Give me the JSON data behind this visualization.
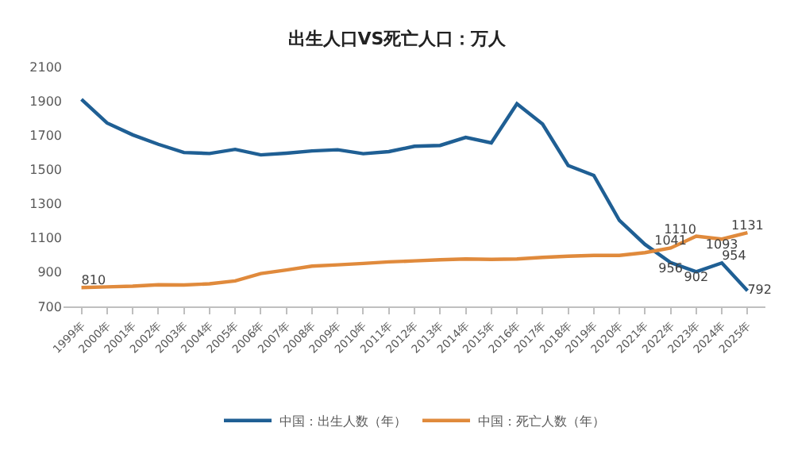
{
  "chart_data": {
    "type": "line",
    "title": "出生人口VS死亡人口：万人",
    "categories": [
      "1999年",
      "2000年",
      "2001年",
      "2002年",
      "2003年",
      "2004年",
      "2005年",
      "2006年",
      "2007年",
      "2008年",
      "2009年",
      "2010年",
      "2011年",
      "2012年",
      "2013年",
      "2014年",
      "2015年",
      "2016年",
      "2017年",
      "2018年",
      "2019年",
      "2020年",
      "2021年",
      "2022年",
      "2023年",
      "2024年",
      "2025年"
    ],
    "series": [
      {
        "name": "中国：出生人数（年）",
        "color": "#1f5f94",
        "values": [
          1909,
          1771,
          1702,
          1647,
          1599,
          1593,
          1617,
          1585,
          1595,
          1608,
          1615,
          1592,
          1604,
          1635,
          1640,
          1687,
          1655,
          1883,
          1765,
          1523,
          1465,
          1202,
          1062,
          956,
          902,
          954,
          792
        ],
        "value_labels": [
          null,
          null,
          null,
          null,
          null,
          null,
          null,
          null,
          null,
          null,
          null,
          null,
          null,
          null,
          null,
          null,
          null,
          null,
          null,
          null,
          null,
          null,
          null,
          "956",
          "902",
          "954",
          "792"
        ]
      },
      {
        "name": "中国：死亡人数（年）",
        "color": "#e08a3c",
        "values": [
          810,
          814,
          818,
          826,
          825,
          832,
          849,
          892,
          913,
          935,
          943,
          951,
          960,
          966,
          972,
          977,
          975,
          977,
          986,
          993,
          998,
          998,
          1014,
          1041,
          1110,
          1093,
          1131
        ],
        "value_labels": [
          "810",
          null,
          null,
          null,
          null,
          null,
          null,
          null,
          null,
          null,
          null,
          null,
          null,
          null,
          null,
          null,
          null,
          null,
          null,
          null,
          null,
          null,
          null,
          "1041",
          "1110",
          "1093",
          "1131"
        ]
      }
    ],
    "ylim": [
      700,
      2100
    ],
    "yticks": [
      700,
      900,
      1100,
      1300,
      1500,
      1700,
      1900,
      2100
    ],
    "grid": false,
    "legend": "bottom",
    "marker": "none",
    "line_style": "solid"
  }
}
